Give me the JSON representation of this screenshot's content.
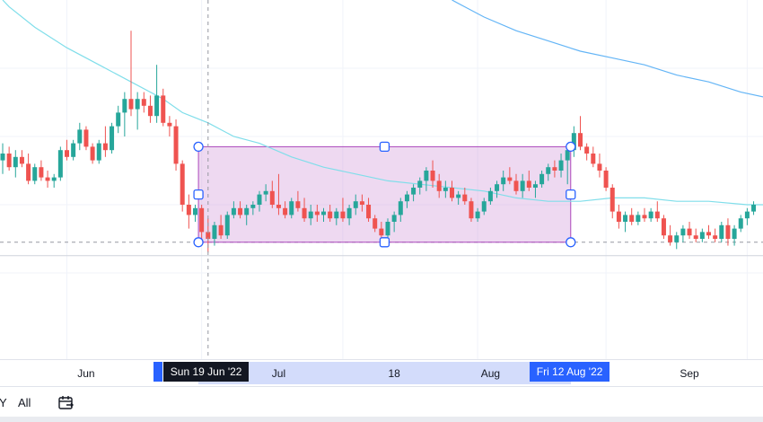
{
  "chart_data": {
    "type": "candlestick",
    "colors": {
      "up": "#26a69a",
      "down": "#ef5350",
      "ma_short": "#80deea",
      "ma_long": "#64b5f6",
      "range_fill": "#ce93d8",
      "range_border": "#ab47bc",
      "handle": "#2962ff",
      "axis_highlight": "#d3dcfb",
      "crosshair_label": "#131722",
      "range_label": "#2962ff"
    },
    "x_tick_labels": [
      "Jun",
      "Jul",
      "18",
      "Aug",
      "Sep"
    ],
    "y_range": [
      0,
      100
    ],
    "candles": [
      {
        "o": 53,
        "h": 58,
        "l": 49,
        "c": 55
      },
      {
        "o": 55,
        "h": 57,
        "l": 50,
        "c": 51
      },
      {
        "o": 51,
        "h": 56,
        "l": 48,
        "c": 54
      },
      {
        "o": 54,
        "h": 56,
        "l": 51,
        "c": 52
      },
      {
        "o": 52,
        "h": 55,
        "l": 46,
        "c": 47
      },
      {
        "o": 47,
        "h": 52,
        "l": 46,
        "c": 51
      },
      {
        "o": 51,
        "h": 53,
        "l": 47,
        "c": 48
      },
      {
        "o": 48,
        "h": 50,
        "l": 45,
        "c": 47
      },
      {
        "o": 47,
        "h": 49,
        "l": 45,
        "c": 48
      },
      {
        "o": 48,
        "h": 57,
        "l": 47,
        "c": 56
      },
      {
        "o": 56,
        "h": 59,
        "l": 53,
        "c": 54
      },
      {
        "o": 54,
        "h": 59,
        "l": 53,
        "c": 58
      },
      {
        "o": 58,
        "h": 64,
        "l": 56,
        "c": 62
      },
      {
        "o": 62,
        "h": 63,
        "l": 56,
        "c": 57
      },
      {
        "o": 57,
        "h": 58,
        "l": 52,
        "c": 53
      },
      {
        "o": 53,
        "h": 59,
        "l": 52,
        "c": 58
      },
      {
        "o": 58,
        "h": 63,
        "l": 54,
        "c": 56
      },
      {
        "o": 56,
        "h": 64,
        "l": 55,
        "c": 63
      },
      {
        "o": 63,
        "h": 69,
        "l": 61,
        "c": 67
      },
      {
        "o": 67,
        "h": 73,
        "l": 60,
        "c": 71
      },
      {
        "o": 71,
        "h": 91,
        "l": 66,
        "c": 68
      },
      {
        "o": 68,
        "h": 73,
        "l": 62,
        "c": 71
      },
      {
        "o": 71,
        "h": 73,
        "l": 67,
        "c": 69
      },
      {
        "o": 69,
        "h": 72,
        "l": 64,
        "c": 66
      },
      {
        "o": 66,
        "h": 81,
        "l": 64,
        "c": 72
      },
      {
        "o": 72,
        "h": 74,
        "l": 63,
        "c": 64
      },
      {
        "o": 64,
        "h": 66,
        "l": 60,
        "c": 63
      },
      {
        "o": 63,
        "h": 65,
        "l": 50,
        "c": 52
      },
      {
        "o": 52,
        "h": 53,
        "l": 38,
        "c": 40
      },
      {
        "o": 40,
        "h": 43,
        "l": 33,
        "c": 37
      },
      {
        "o": 37,
        "h": 40,
        "l": 35,
        "c": 39
      },
      {
        "o": 39,
        "h": 40,
        "l": 30,
        "c": 32
      },
      {
        "o": 32,
        "h": 36,
        "l": 26,
        "c": 30
      },
      {
        "o": 30,
        "h": 35,
        "l": 28,
        "c": 34
      },
      {
        "o": 34,
        "h": 37,
        "l": 30,
        "c": 31
      },
      {
        "o": 31,
        "h": 38,
        "l": 30,
        "c": 37
      },
      {
        "o": 37,
        "h": 41,
        "l": 36,
        "c": 39
      },
      {
        "o": 39,
        "h": 41,
        "l": 36,
        "c": 37
      },
      {
        "o": 37,
        "h": 40,
        "l": 34,
        "c": 39
      },
      {
        "o": 39,
        "h": 41,
        "l": 37,
        "c": 40
      },
      {
        "o": 40,
        "h": 44,
        "l": 38,
        "c": 43
      },
      {
        "o": 43,
        "h": 46,
        "l": 41,
        "c": 44
      },
      {
        "o": 44,
        "h": 47,
        "l": 39,
        "c": 40
      },
      {
        "o": 40,
        "h": 49,
        "l": 37,
        "c": 39
      },
      {
        "o": 39,
        "h": 41,
        "l": 36,
        "c": 37
      },
      {
        "o": 37,
        "h": 42,
        "l": 36,
        "c": 41
      },
      {
        "o": 41,
        "h": 44,
        "l": 38,
        "c": 39
      },
      {
        "o": 39,
        "h": 42,
        "l": 35,
        "c": 36
      },
      {
        "o": 36,
        "h": 40,
        "l": 34,
        "c": 38
      },
      {
        "o": 38,
        "h": 40,
        "l": 35,
        "c": 37
      },
      {
        "o": 37,
        "h": 39,
        "l": 35,
        "c": 38
      },
      {
        "o": 38,
        "h": 40,
        "l": 35,
        "c": 36
      },
      {
        "o": 36,
        "h": 39,
        "l": 34,
        "c": 38
      },
      {
        "o": 38,
        "h": 42,
        "l": 35,
        "c": 36
      },
      {
        "o": 36,
        "h": 40,
        "l": 34,
        "c": 39
      },
      {
        "o": 39,
        "h": 43,
        "l": 37,
        "c": 41
      },
      {
        "o": 41,
        "h": 43,
        "l": 38,
        "c": 40
      },
      {
        "o": 40,
        "h": 42,
        "l": 35,
        "c": 36
      },
      {
        "o": 36,
        "h": 37,
        "l": 32,
        "c": 33
      },
      {
        "o": 33,
        "h": 35,
        "l": 29,
        "c": 31
      },
      {
        "o": 31,
        "h": 36,
        "l": 30,
        "c": 35
      },
      {
        "o": 35,
        "h": 38,
        "l": 32,
        "c": 37
      },
      {
        "o": 37,
        "h": 42,
        "l": 35,
        "c": 41
      },
      {
        "o": 41,
        "h": 44,
        "l": 39,
        "c": 43
      },
      {
        "o": 43,
        "h": 46,
        "l": 41,
        "c": 45
      },
      {
        "o": 45,
        "h": 48,
        "l": 43,
        "c": 47
      },
      {
        "o": 47,
        "h": 51,
        "l": 44,
        "c": 50
      },
      {
        "o": 50,
        "h": 53,
        "l": 45,
        "c": 47
      },
      {
        "o": 47,
        "h": 49,
        "l": 42,
        "c": 44
      },
      {
        "o": 44,
        "h": 47,
        "l": 42,
        "c": 45
      },
      {
        "o": 45,
        "h": 47,
        "l": 41,
        "c": 42
      },
      {
        "o": 42,
        "h": 44,
        "l": 40,
        "c": 43
      },
      {
        "o": 43,
        "h": 45,
        "l": 40,
        "c": 41
      },
      {
        "o": 41,
        "h": 42,
        "l": 35,
        "c": 36
      },
      {
        "o": 36,
        "h": 39,
        "l": 35,
        "c": 38
      },
      {
        "o": 38,
        "h": 42,
        "l": 37,
        "c": 41
      },
      {
        "o": 41,
        "h": 45,
        "l": 40,
        "c": 44
      },
      {
        "o": 44,
        "h": 47,
        "l": 42,
        "c": 46
      },
      {
        "o": 46,
        "h": 50,
        "l": 44,
        "c": 48
      },
      {
        "o": 48,
        "h": 51,
        "l": 46,
        "c": 47
      },
      {
        "o": 47,
        "h": 49,
        "l": 43,
        "c": 44
      },
      {
        "o": 44,
        "h": 49,
        "l": 42,
        "c": 47
      },
      {
        "o": 47,
        "h": 50,
        "l": 44,
        "c": 45
      },
      {
        "o": 45,
        "h": 47,
        "l": 42,
        "c": 46
      },
      {
        "o": 46,
        "h": 50,
        "l": 45,
        "c": 49
      },
      {
        "o": 49,
        "h": 52,
        "l": 47,
        "c": 51
      },
      {
        "o": 51,
        "h": 53,
        "l": 48,
        "c": 50
      },
      {
        "o": 50,
        "h": 55,
        "l": 48,
        "c": 53
      },
      {
        "o": 53,
        "h": 57,
        "l": 46,
        "c": 56
      },
      {
        "o": 56,
        "h": 63,
        "l": 54,
        "c": 61
      },
      {
        "o": 61,
        "h": 66,
        "l": 56,
        "c": 57
      },
      {
        "o": 57,
        "h": 58,
        "l": 53,
        "c": 55
      },
      {
        "o": 55,
        "h": 57,
        "l": 51,
        "c": 52
      },
      {
        "o": 52,
        "h": 55,
        "l": 48,
        "c": 50
      },
      {
        "o": 50,
        "h": 51,
        "l": 44,
        "c": 45
      },
      {
        "o": 45,
        "h": 46,
        "l": 36,
        "c": 38
      },
      {
        "o": 38,
        "h": 40,
        "l": 33,
        "c": 35
      },
      {
        "o": 35,
        "h": 38,
        "l": 32,
        "c": 37
      },
      {
        "o": 37,
        "h": 39,
        "l": 34,
        "c": 35
      },
      {
        "o": 35,
        "h": 38,
        "l": 34,
        "c": 37
      },
      {
        "o": 37,
        "h": 39,
        "l": 35,
        "c": 36
      },
      {
        "o": 36,
        "h": 39,
        "l": 35,
        "c": 38
      },
      {
        "o": 38,
        "h": 41,
        "l": 35,
        "c": 36
      },
      {
        "o": 36,
        "h": 37,
        "l": 30,
        "c": 31
      },
      {
        "o": 31,
        "h": 34,
        "l": 28,
        "c": 29
      },
      {
        "o": 29,
        "h": 32,
        "l": 27,
        "c": 31
      },
      {
        "o": 31,
        "h": 34,
        "l": 29,
        "c": 33
      },
      {
        "o": 33,
        "h": 35,
        "l": 30,
        "c": 31
      },
      {
        "o": 31,
        "h": 33,
        "l": 29,
        "c": 30
      },
      {
        "o": 30,
        "h": 33,
        "l": 29,
        "c": 32
      },
      {
        "o": 32,
        "h": 34,
        "l": 30,
        "c": 31
      },
      {
        "o": 31,
        "h": 33,
        "l": 29,
        "c": 30
      },
      {
        "o": 30,
        "h": 35,
        "l": 29,
        "c": 34
      },
      {
        "o": 34,
        "h": 36,
        "l": 28,
        "c": 30
      },
      {
        "o": 30,
        "h": 34,
        "l": 28,
        "c": 33
      },
      {
        "o": 33,
        "h": 37,
        "l": 32,
        "c": 36
      },
      {
        "o": 36,
        "h": 39,
        "l": 34,
        "c": 38
      },
      {
        "o": 38,
        "h": 41,
        "l": 37,
        "c": 40
      }
    ],
    "ma_short": [
      [
        0,
        100
      ],
      [
        1,
        98
      ],
      [
        5,
        92
      ],
      [
        10,
        86
      ],
      [
        15,
        81
      ],
      [
        20,
        76
      ],
      [
        25,
        71
      ],
      [
        28,
        67
      ],
      [
        32,
        64
      ],
      [
        36,
        60
      ],
      [
        40,
        58
      ],
      [
        45,
        54
      ],
      [
        50,
        51
      ],
      [
        55,
        49
      ],
      [
        60,
        47
      ],
      [
        65,
        46
      ],
      [
        70,
        45
      ],
      [
        75,
        44
      ],
      [
        80,
        42
      ],
      [
        85,
        41
      ],
      [
        90,
        41
      ],
      [
        95,
        42
      ],
      [
        100,
        42
      ],
      [
        105,
        41
      ],
      [
        110,
        41
      ],
      [
        116,
        40
      ],
      [
        120,
        40
      ]
    ],
    "ma_long": [
      [
        70,
        100
      ],
      [
        72,
        98
      ],
      [
        75,
        95
      ],
      [
        80,
        91
      ],
      [
        85,
        88
      ],
      [
        90,
        85
      ],
      [
        95,
        83
      ],
      [
        100,
        81
      ],
      [
        105,
        78
      ],
      [
        110,
        76
      ],
      [
        115,
        73
      ],
      [
        120,
        71
      ]
    ],
    "dashed_price_level": 29,
    "crosshair_x": 32,
    "range_box": {
      "x1": 30.5,
      "x2": 88.5,
      "y_top": 57,
      "y_bottom": 29
    }
  },
  "time_axis": {
    "crosshair_label": "Sun 19 Jun '22",
    "range_end_label": "Fri 12 Aug '22"
  },
  "bottom_bar": {
    "partial_button": "Y",
    "all_button": "All",
    "calendar_icon": "calendar-goto-icon"
  }
}
